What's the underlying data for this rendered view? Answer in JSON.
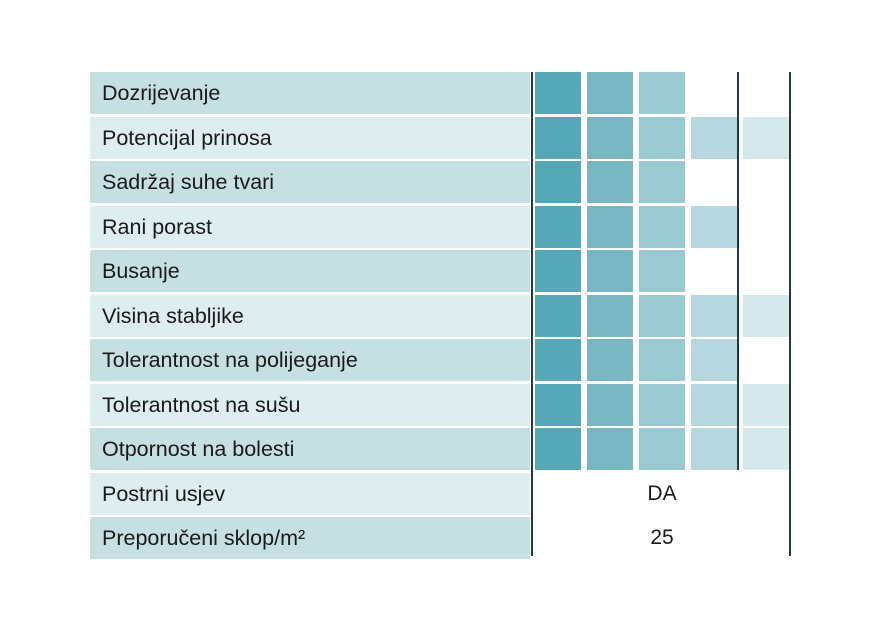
{
  "traits": [
    {
      "label": "Dozrijevanje",
      "level": 3
    },
    {
      "label": "Potencijal prinosa",
      "level": 5
    },
    {
      "label": "Sadržaj suhe tvari",
      "level": 3
    },
    {
      "label": "Rani porast",
      "level": 4
    },
    {
      "label": "Busanje",
      "level": 3
    },
    {
      "label": "Visina stabljike",
      "level": 5
    },
    {
      "label": "Tolerantnost na polijeganje",
      "level": 4
    },
    {
      "label": "Tolerantnost na sušu",
      "level": 5
    },
    {
      "label": "Otpornost na bolesti",
      "level": 5
    }
  ],
  "rating_max": 5,
  "rating_colors": [
    "#56a8b6",
    "#78b6c1",
    "#9bc9d1",
    "#b6d7dd",
    "#d5e8eb"
  ],
  "extra_rows": [
    {
      "label": "Postrni usjev",
      "value": "DA"
    },
    {
      "label": "Preporučeni sklop/m²",
      "value": "25"
    }
  ]
}
